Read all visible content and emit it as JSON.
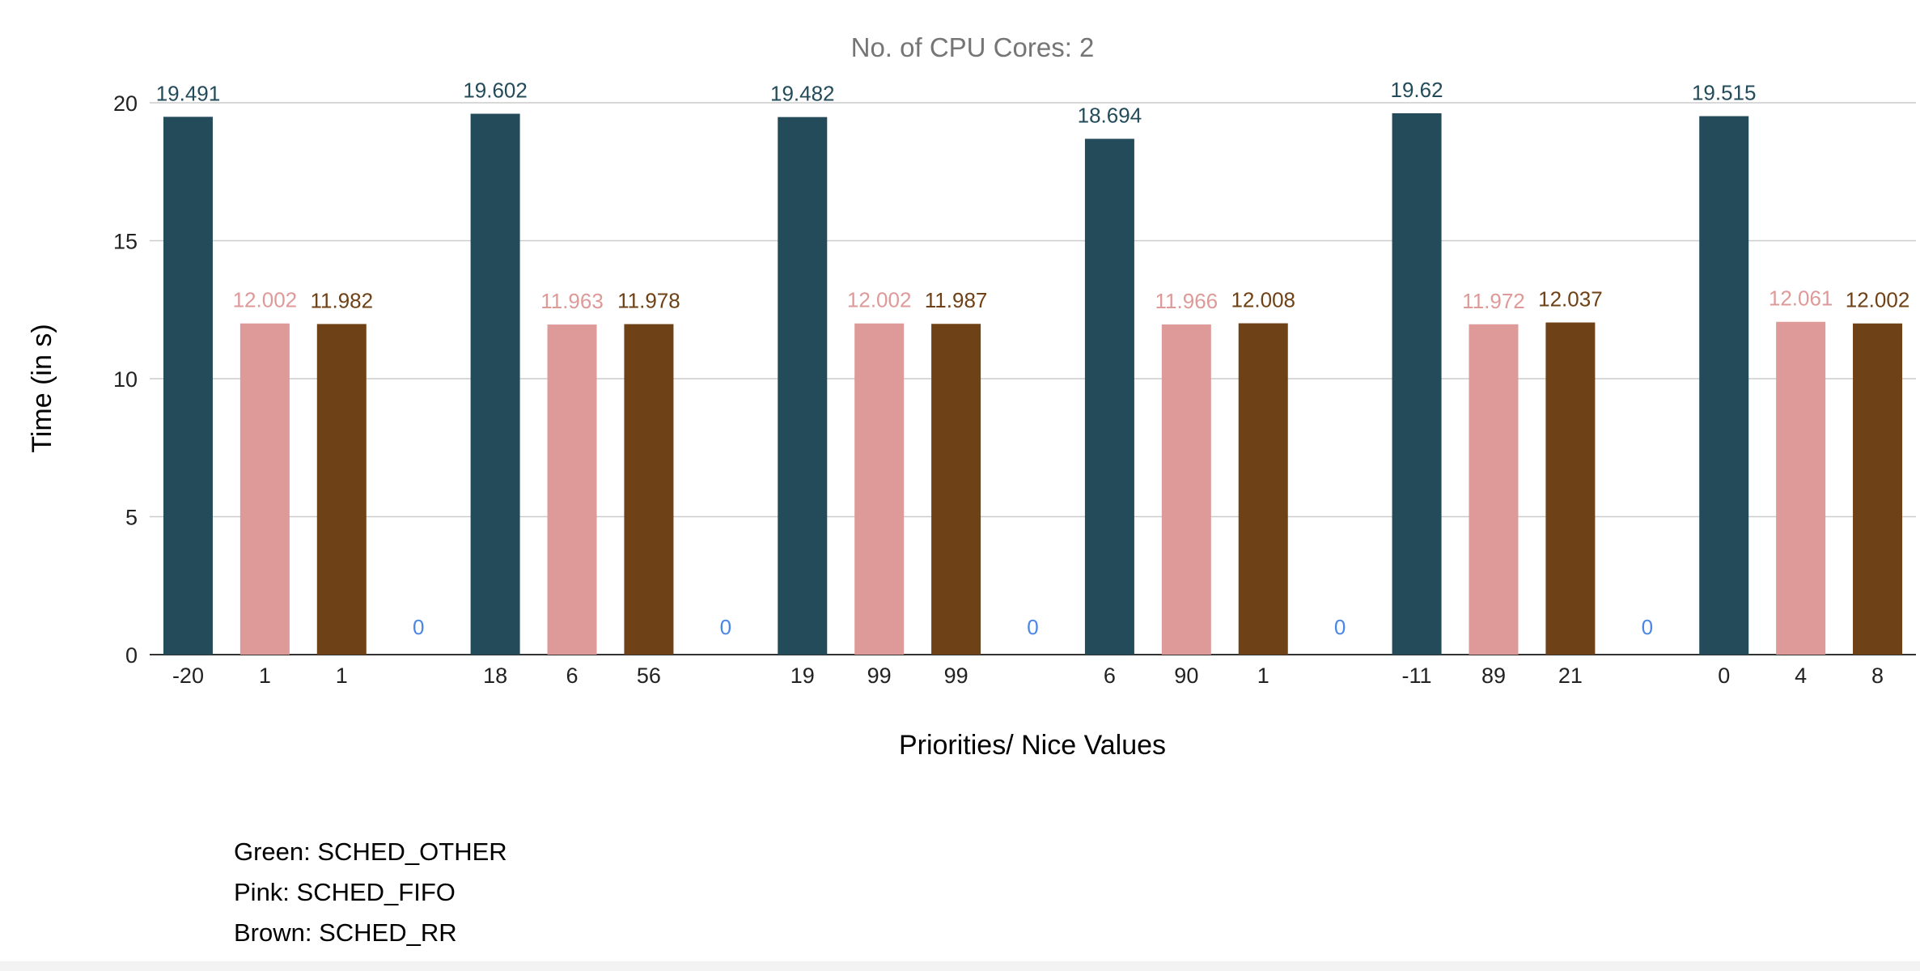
{
  "chart_data": {
    "type": "bar",
    "title": "No. of CPU Cores: 2",
    "xlabel": "Priorities/ Nice Values",
    "ylabel": "Time (in s)",
    "ylim": [
      0,
      20
    ],
    "yticks": [
      "0",
      "5",
      "10",
      "15",
      "20"
    ],
    "grid": true,
    "categories": [
      "-20",
      "1",
      "1",
      "",
      "18",
      "6",
      "56",
      "",
      "19",
      "99",
      "99",
      "",
      "6",
      "90",
      "1",
      "",
      "-11",
      "89",
      "21",
      "",
      "0",
      "4",
      "8"
    ],
    "series": [
      {
        "color": "#234b5a",
        "values": [
          19.491,
          null,
          null,
          null,
          19.602,
          null,
          null,
          null,
          19.482,
          null,
          null,
          null,
          18.694,
          null,
          null,
          null,
          19.62,
          null,
          null,
          null,
          19.515,
          null,
          null
        ]
      },
      {
        "color": "#dd9a99",
        "values": [
          null,
          12.002,
          null,
          null,
          null,
          11.963,
          null,
          null,
          null,
          12.002,
          null,
          null,
          null,
          11.966,
          null,
          null,
          null,
          11.972,
          null,
          null,
          null,
          12.061,
          null
        ]
      },
      {
        "color": "#6f4117",
        "values": [
          null,
          null,
          11.982,
          null,
          null,
          null,
          11.978,
          null,
          null,
          null,
          11.987,
          null,
          null,
          null,
          12.008,
          null,
          null,
          null,
          12.037,
          null,
          null,
          null,
          12.002
        ]
      },
      {
        "color": "#4a86e8",
        "values": [
          null,
          null,
          null,
          0,
          null,
          null,
          null,
          0,
          null,
          null,
          null,
          0,
          null,
          null,
          null,
          0,
          null,
          null,
          null,
          0,
          null,
          null,
          null
        ]
      }
    ],
    "data_labels": [
      "19.491",
      "12.002",
      "11.982",
      "0",
      "19.602",
      "11.963",
      "11.978",
      "0",
      "19.482",
      "12.002",
      "11.987",
      "0",
      "18.694",
      "11.966",
      "12.008",
      "0",
      "19.62",
      "11.972",
      "12.037",
      "0",
      "19.515",
      "12.061",
      "12.002"
    ]
  },
  "notes": {
    "line1": "Green: SCHED_OTHER",
    "line2": "Pink: SCHED_FIFO",
    "line3": "Brown: SCHED_RR"
  }
}
